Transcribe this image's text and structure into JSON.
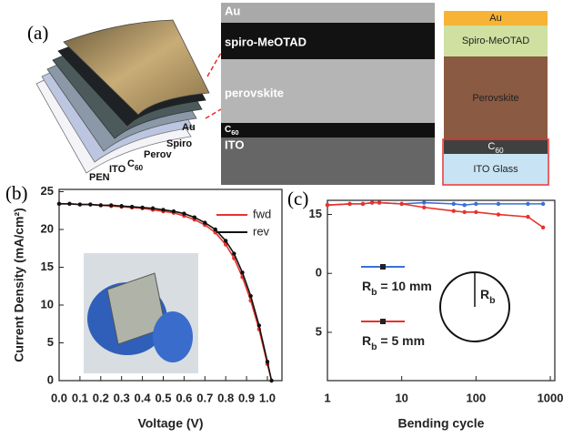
{
  "panel_a": {
    "label": "(a)",
    "device_layers": [
      "Au",
      "Spiro",
      "Perov",
      "C60",
      "ITO",
      "PEN"
    ],
    "sem_labels": [
      "Au",
      "spiro-MeOTAD",
      "perovskite",
      "C60",
      "ITO"
    ],
    "stack_labels": [
      "Au",
      "Spiro-MeOTAD",
      "Perovskite",
      "C60",
      "ITO Glass"
    ]
  },
  "chart_data": [
    {
      "type": "line",
      "panel_label": "(b)",
      "x_label": "Voltage (V)",
      "y_label": "Current Density (mA/cm²)",
      "x": [
        0,
        0.05,
        0.1,
        0.15,
        0.2,
        0.25,
        0.3,
        0.35,
        0.4,
        0.45,
        0.5,
        0.55,
        0.6,
        0.65,
        0.7,
        0.75,
        0.8,
        0.84,
        0.88,
        0.92,
        0.96,
        1.0,
        1.02
      ],
      "series": [
        {
          "name": "fwd",
          "color": "#e8322b",
          "values": [
            23.4,
            23.4,
            23.3,
            23.3,
            23.2,
            23.1,
            23.0,
            22.9,
            22.8,
            22.6,
            22.4,
            22.2,
            21.8,
            21.3,
            20.6,
            19.6,
            18.0,
            16.2,
            13.7,
            10.6,
            6.8,
            2.2,
            0
          ]
        },
        {
          "name": "rev",
          "color": "#111111",
          "values": [
            23.4,
            23.4,
            23.3,
            23.3,
            23.2,
            23.2,
            23.1,
            23.0,
            22.9,
            22.8,
            22.6,
            22.4,
            22.1,
            21.6,
            20.9,
            20.0,
            18.5,
            16.8,
            14.3,
            11.2,
            7.3,
            2.5,
            0
          ]
        }
      ],
      "xlim": [
        0,
        1.07
      ],
      "ylim": [
        0,
        25.3
      ],
      "xticks": [
        {
          "value": 0,
          "label": "0.0"
        },
        0.1,
        0.2,
        0.3,
        0.4,
        0.5,
        0.6,
        0.7,
        0.8,
        0.9,
        {
          "value": 1,
          "label": "1.0"
        }
      ],
      "yticks": [
        0,
        5,
        10,
        15,
        20,
        25
      ]
    },
    {
      "type": "line",
      "panel_label": "(c)",
      "x_label": "Bending cycle",
      "log_x": true,
      "x": [
        1,
        2,
        3,
        4,
        5,
        10,
        20,
        50,
        70,
        100,
        200,
        500,
        800
      ],
      "series": [
        {
          "name": "Rb = 10 mm",
          "color": "#3a6fd8",
          "values": [
            15.8,
            15.9,
            15.9,
            16.0,
            16.0,
            15.9,
            16.0,
            15.9,
            15.8,
            15.9,
            15.9,
            15.9,
            15.9
          ]
        },
        {
          "name": "Rb = 5 mm",
          "color": "#e8322b",
          "values": [
            15.8,
            15.9,
            15.9,
            16.0,
            16.0,
            15.9,
            15.6,
            15.3,
            15.2,
            15.2,
            15.0,
            14.8,
            13.9
          ]
        }
      ],
      "circle_label": "Rb",
      "xlim": [
        1,
        1150
      ],
      "ylim": [
        0.9,
        16.2
      ],
      "xticks": [
        1,
        10,
        100,
        1000
      ],
      "yticks": [
        {
          "value": 10,
          "label": "0"
        },
        5,
        15
      ]
    }
  ]
}
